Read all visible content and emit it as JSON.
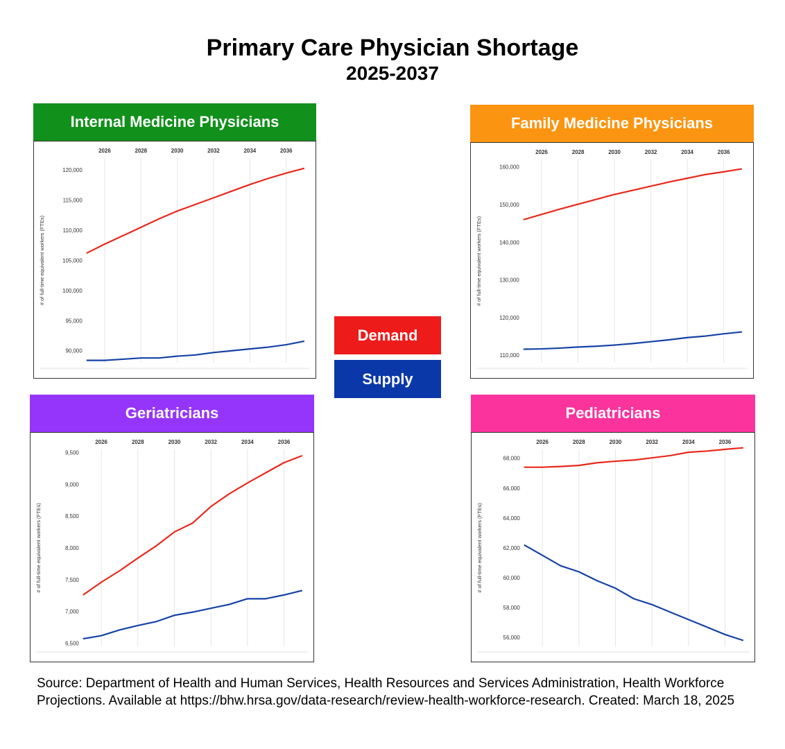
{
  "title": "Primary Care Physician Shortage",
  "subtitle": "2025-2037",
  "legend": {
    "demand": {
      "label": "Demand",
      "color": "#ee1b1b"
    },
    "supply": {
      "label": "Supply",
      "color": "#0a38a8"
    }
  },
  "source": "Source: Department of Health and Human Services, Health Resources and Services Administration, Health Workforce Projections. Available at https://bhw.hrsa.gov/data-research/review-health-workforce-research. Created: March 18, 2025",
  "chart_data": [
    {
      "type": "line",
      "title": "Internal Medicine Physicians",
      "header_color": "#12901c",
      "ylabel": "# of full-time equivalent workers (FTEs)",
      "x": [
        2025,
        2026,
        2027,
        2028,
        2029,
        2030,
        2031,
        2032,
        2033,
        2034,
        2035,
        2036,
        2037
      ],
      "x_ticks": [
        "2026",
        "2028",
        "2030",
        "2032",
        "2034",
        "2036"
      ],
      "y_ticks": [
        "90,000",
        "95,000",
        "100,000",
        "105,000",
        "110,000",
        "115,000",
        "120,000"
      ],
      "ylim": [
        88000,
        122000
      ],
      "grid": true,
      "series": [
        {
          "name": "Demand",
          "color": "#e8281b",
          "values": [
            106200,
            107700,
            109100,
            110500,
            111900,
            113200,
            114300,
            115400,
            116500,
            117600,
            118600,
            119500,
            120300
          ]
        },
        {
          "name": "Supply",
          "color": "#1542a6",
          "values": [
            88400,
            88400,
            88600,
            88800,
            88800,
            89100,
            89300,
            89700,
            90000,
            90300,
            90600,
            91000,
            91600
          ]
        }
      ]
    },
    {
      "type": "line",
      "title": "Family Medicine Physicians",
      "header_color": "#fb9410",
      "ylabel": "# of full-time equivalent workers (FTEs)",
      "x": [
        2025,
        2026,
        2027,
        2028,
        2029,
        2030,
        2031,
        2032,
        2033,
        2034,
        2035,
        2036,
        2037
      ],
      "x_ticks": [
        "2026",
        "2028",
        "2030",
        "2032",
        "2034",
        "2036"
      ],
      "y_ticks": [
        "110,000",
        "120,000",
        "130,000",
        "140,000",
        "150,000",
        "160,000"
      ],
      "ylim": [
        108000,
        162000
      ],
      "grid": true,
      "series": [
        {
          "name": "Demand",
          "color": "#e8281b",
          "values": [
            146000,
            147400,
            148800,
            150100,
            151400,
            152700,
            153800,
            154900,
            156000,
            157000,
            158000,
            158700,
            159500
          ]
        },
        {
          "name": "Supply",
          "color": "#1542a6",
          "values": [
            111600,
            111700,
            111900,
            112200,
            112400,
            112700,
            113100,
            113600,
            114100,
            114700,
            115100,
            115700,
            116200
          ]
        }
      ]
    },
    {
      "type": "line",
      "title": "Geriatricians",
      "header_color": "#9535fb",
      "ylabel": "# of full-time equivalent workers (FTEs)",
      "x": [
        2025,
        2026,
        2027,
        2028,
        2029,
        2030,
        2031,
        2032,
        2033,
        2034,
        2035,
        2036,
        2037
      ],
      "x_ticks": [
        "2026",
        "2028",
        "2030",
        "2032",
        "2034",
        "2036"
      ],
      "y_ticks": [
        "6,500",
        "7,000",
        "7,500",
        "8,000",
        "8,500",
        "9,000",
        "9,500"
      ],
      "ylim": [
        6450,
        9550
      ],
      "grid": true,
      "series": [
        {
          "name": "Demand",
          "color": "#e8281b",
          "values": [
            7260,
            7460,
            7640,
            7840,
            8030,
            8250,
            8390,
            8650,
            8850,
            9020,
            9180,
            9340,
            9450
          ]
        },
        {
          "name": "Supply",
          "color": "#1542a6",
          "values": [
            6570,
            6620,
            6710,
            6780,
            6840,
            6940,
            6990,
            7050,
            7110,
            7200,
            7200,
            7260,
            7330
          ]
        }
      ]
    },
    {
      "type": "line",
      "title": "Pediatricians",
      "header_color": "#fb339c",
      "ylabel": "# of full-time equivalent workers (FTEs)",
      "x": [
        2025,
        2026,
        2027,
        2028,
        2029,
        2030,
        2031,
        2032,
        2033,
        2034,
        2035,
        2036,
        2037
      ],
      "x_ticks": [
        "2026",
        "2028",
        "2030",
        "2032",
        "2034",
        "2036"
      ],
      "y_ticks": [
        "56,000",
        "58,000",
        "60,000",
        "62,000",
        "64,000",
        "66,000",
        "68,000"
      ],
      "ylim": [
        55400,
        68600
      ],
      "grid": true,
      "series": [
        {
          "name": "Demand",
          "color": "#e8281b",
          "values": [
            67400,
            67400,
            67450,
            67520,
            67700,
            67800,
            67880,
            68030,
            68180,
            68400,
            68480,
            68600,
            68700
          ]
        },
        {
          "name": "Supply",
          "color": "#1542a6",
          "values": [
            62200,
            61500,
            60800,
            60400,
            59800,
            59300,
            58600,
            58200,
            57700,
            57200,
            56700,
            56200,
            55800
          ]
        }
      ]
    }
  ]
}
